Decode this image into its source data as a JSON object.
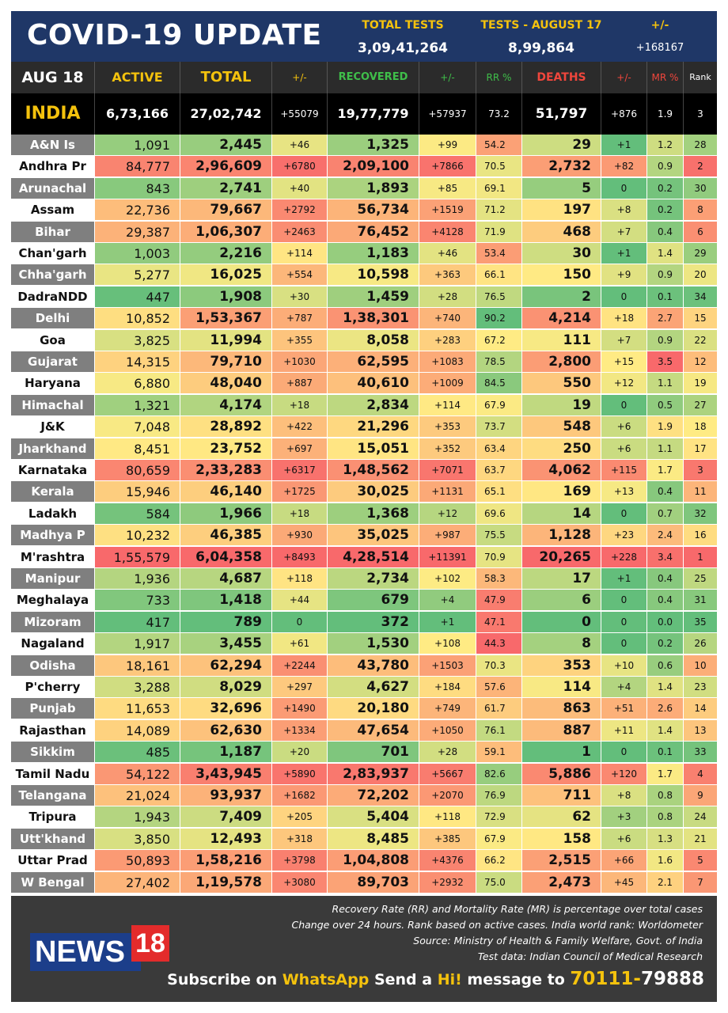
{
  "header": {
    "title": "COVID-19 UPDATE",
    "total_tests_label": "TOTAL TESTS",
    "total_tests_value": "3,09,41,264",
    "tests_day_label": "TESTS - AUGUST 17",
    "tests_day_value": "8,99,864",
    "delta_label": "+/-",
    "delta_value": "+168167"
  },
  "columns": {
    "date": "AUG 18",
    "active": "ACTIVE",
    "total": "TOTAL",
    "total_delta": "+/-",
    "recovered": "RECOVERED",
    "recovered_delta": "+/-",
    "rr": "RR %",
    "deaths": "DEATHS",
    "deaths_delta": "+/-",
    "mr": "MR %",
    "rank": "Rank"
  },
  "india": {
    "name": "INDIA",
    "active": "6,73,166",
    "total": "27,02,742",
    "total_delta": "+55079",
    "recovered": "19,77,779",
    "recovered_delta": "+57937",
    "rr": "73.2",
    "deaths": "51,797",
    "deaths_delta": "+876",
    "mr": "1.9",
    "rank": "3"
  },
  "rows": [
    [
      "A&N Is",
      "1,091",
      "2,445",
      "+46",
      "1,325",
      "+99",
      "54.2",
      "29",
      "+1",
      "1.2",
      "28"
    ],
    [
      "Andhra Pr",
      "84,777",
      "2,96,609",
      "+6780",
      "2,09,100",
      "+7866",
      "70.5",
      "2,732",
      "+82",
      "0.9",
      "2"
    ],
    [
      "Arunachal",
      "843",
      "2,741",
      "+40",
      "1,893",
      "+85",
      "69.1",
      "5",
      "0",
      "0.2",
      "30"
    ],
    [
      "Assam",
      "22,736",
      "79,667",
      "+2792",
      "56,734",
      "+1519",
      "71.2",
      "197",
      "+8",
      "0.2",
      "8"
    ],
    [
      "Bihar",
      "29,387",
      "1,06,307",
      "+2463",
      "76,452",
      "+4128",
      "71.9",
      "468",
      "+7",
      "0.4",
      "6"
    ],
    [
      "Chan'garh",
      "1,003",
      "2,216",
      "+114",
      "1,183",
      "+46",
      "53.4",
      "30",
      "+1",
      "1.4",
      "29"
    ],
    [
      "Chha'garh",
      "5,277",
      "16,025",
      "+554",
      "10,598",
      "+363",
      "66.1",
      "150",
      "+9",
      "0.9",
      "20"
    ],
    [
      "DadraNDD",
      "447",
      "1,908",
      "+30",
      "1,459",
      "+28",
      "76.5",
      "2",
      "0",
      "0.1",
      "34"
    ],
    [
      "Delhi",
      "10,852",
      "1,53,367",
      "+787",
      "1,38,301",
      "+740",
      "90.2",
      "4,214",
      "+18",
      "2.7",
      "15"
    ],
    [
      "Goa",
      "3,825",
      "11,994",
      "+355",
      "8,058",
      "+283",
      "67.2",
      "111",
      "+7",
      "0.9",
      "22"
    ],
    [
      "Gujarat",
      "14,315",
      "79,710",
      "+1030",
      "62,595",
      "+1083",
      "78.5",
      "2,800",
      "+15",
      "3.5",
      "12"
    ],
    [
      "Haryana",
      "6,880",
      "48,040",
      "+887",
      "40,610",
      "+1009",
      "84.5",
      "550",
      "+12",
      "1.1",
      "19"
    ],
    [
      "Himachal",
      "1,321",
      "4,174",
      "+18",
      "2,834",
      "+114",
      "67.9",
      "19",
      "0",
      "0.5",
      "27"
    ],
    [
      "J&K",
      "7,048",
      "28,892",
      "+422",
      "21,296",
      "+353",
      "73.7",
      "548",
      "+6",
      "1.9",
      "18"
    ],
    [
      "Jharkhand",
      "8,451",
      "23,752",
      "+697",
      "15,051",
      "+352",
      "63.4",
      "250",
      "+6",
      "1.1",
      "17"
    ],
    [
      "Karnataka",
      "80,659",
      "2,33,283",
      "+6317",
      "1,48,562",
      "+7071",
      "63.7",
      "4,062",
      "+115",
      "1.7",
      "3"
    ],
    [
      "Kerala",
      "15,946",
      "46,140",
      "+1725",
      "30,025",
      "+1131",
      "65.1",
      "169",
      "+13",
      "0.4",
      "11"
    ],
    [
      "Ladakh",
      "584",
      "1,966",
      "+18",
      "1,368",
      "+12",
      "69.6",
      "14",
      "0",
      "0.7",
      "32"
    ],
    [
      "Madhya P",
      "10,232",
      "46,385",
      "+930",
      "35,025",
      "+987",
      "75.5",
      "1,128",
      "+23",
      "2.4",
      "16"
    ],
    [
      "M'rashtra",
      "1,55,579",
      "6,04,358",
      "+8493",
      "4,28,514",
      "+11391",
      "70.9",
      "20,265",
      "+228",
      "3.4",
      "1"
    ],
    [
      "Manipur",
      "1,936",
      "4,687",
      "+118",
      "2,734",
      "+102",
      "58.3",
      "17",
      "+1",
      "0.4",
      "25"
    ],
    [
      "Meghalaya",
      "733",
      "1,418",
      "+44",
      "679",
      "+4",
      "47.9",
      "6",
      "0",
      "0.4",
      "31"
    ],
    [
      "Mizoram",
      "417",
      "789",
      "0",
      "372",
      "+1",
      "47.1",
      "0",
      "0",
      "0.0",
      "35"
    ],
    [
      "Nagaland",
      "1,917",
      "3,455",
      "+61",
      "1,530",
      "+108",
      "44.3",
      "8",
      "0",
      "0.2",
      "26"
    ],
    [
      "Odisha",
      "18,161",
      "62,294",
      "+2244",
      "43,780",
      "+1503",
      "70.3",
      "353",
      "+10",
      "0.6",
      "10"
    ],
    [
      "P'cherry",
      "3,288",
      "8,029",
      "+297",
      "4,627",
      "+184",
      "57.6",
      "114",
      "+4",
      "1.4",
      "23"
    ],
    [
      "Punjab",
      "11,653",
      "32,696",
      "+1490",
      "20,180",
      "+749",
      "61.7",
      "863",
      "+51",
      "2.6",
      "14"
    ],
    [
      "Rajasthan",
      "14,089",
      "62,630",
      "+1334",
      "47,654",
      "+1050",
      "76.1",
      "887",
      "+11",
      "1.4",
      "13"
    ],
    [
      "Sikkim",
      "485",
      "1,187",
      "+20",
      "701",
      "+28",
      "59.1",
      "1",
      "0",
      "0.1",
      "33"
    ],
    [
      "Tamil Nadu",
      "54,122",
      "3,43,945",
      "+5890",
      "2,83,937",
      "+5667",
      "82.6",
      "5,886",
      "+120",
      "1.7",
      "4"
    ],
    [
      "Telangana",
      "21,024",
      "93,937",
      "+1682",
      "72,202",
      "+2070",
      "76.9",
      "711",
      "+8",
      "0.8",
      "9"
    ],
    [
      "Tripura",
      "1,943",
      "7,409",
      "+205",
      "5,404",
      "+118",
      "72.9",
      "62",
      "+3",
      "0.8",
      "24"
    ],
    [
      "Utt'khand",
      "3,850",
      "12,493",
      "+318",
      "8,485",
      "+385",
      "67.9",
      "158",
      "+6",
      "1.3",
      "21"
    ],
    [
      "Uttar Prad",
      "50,893",
      "1,58,216",
      "+3798",
      "1,04,808",
      "+4376",
      "66.2",
      "2,515",
      "+66",
      "1.6",
      "5"
    ],
    [
      "W Bengal",
      "27,402",
      "1,19,578",
      "+3080",
      "89,703",
      "+2932",
      "75.0",
      "2,473",
      "+45",
      "2.1",
      "7"
    ]
  ],
  "footer": {
    "logo_text": "NEWS",
    "logo_number": "18",
    "note1": "Recovery Rate (RR) and Mortality Rate (MR) is percentage over total cases",
    "note2": "Change over 24 hours. Rank based on active cases. India world rank: Worldometer",
    "note3": "Source: Ministry of Health & Family Welfare, Govt. of India",
    "note4": "Test data: Indian Council of Medical Research",
    "sub_part1": "Subscribe on ",
    "sub_whatsapp": "WhatsApp",
    "sub_part2": " Send a ",
    "sub_hi": "Hi!",
    "sub_part3": " message to ",
    "sub_number1": "70111-",
    "sub_number2": "79888"
  }
}
